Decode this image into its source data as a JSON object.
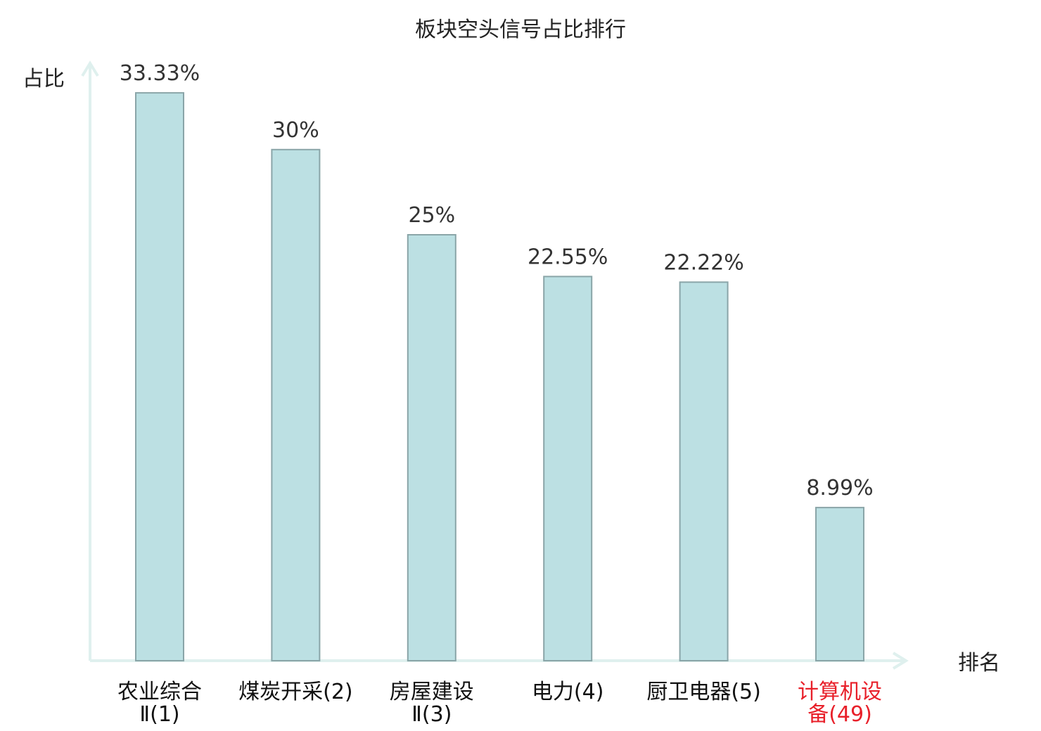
{
  "chart_data": {
    "type": "bar",
    "title": "板块空头信号占比排行",
    "ylabel": "占比",
    "xlabel": "排名",
    "ylim": [
      0,
      35
    ],
    "categories": [
      {
        "lines": [
          "农业综合",
          "Ⅱ(1)"
        ],
        "highlight": false
      },
      {
        "lines": [
          "煤炭开采(2)"
        ],
        "highlight": false
      },
      {
        "lines": [
          "房屋建设",
          "Ⅱ(3)"
        ],
        "highlight": false
      },
      {
        "lines": [
          "电力(4)"
        ],
        "highlight": false
      },
      {
        "lines": [
          "厨卫电器(5)"
        ],
        "highlight": false
      },
      {
        "lines": [
          "计算机设",
          "备(49)"
        ],
        "highlight": true
      }
    ],
    "values": [
      33.33,
      30,
      25,
      22.55,
      22.22,
      8.99
    ],
    "value_labels": [
      "33.33%",
      "30%",
      "25%",
      "22.55%",
      "22.22%",
      "8.99%"
    ],
    "colors": {
      "bar_fill": "#bce0e3",
      "bar_stroke": "#8aa5a8",
      "axis": "#dff0ee",
      "highlight_text": "#e8202a"
    },
    "grid": false
  }
}
